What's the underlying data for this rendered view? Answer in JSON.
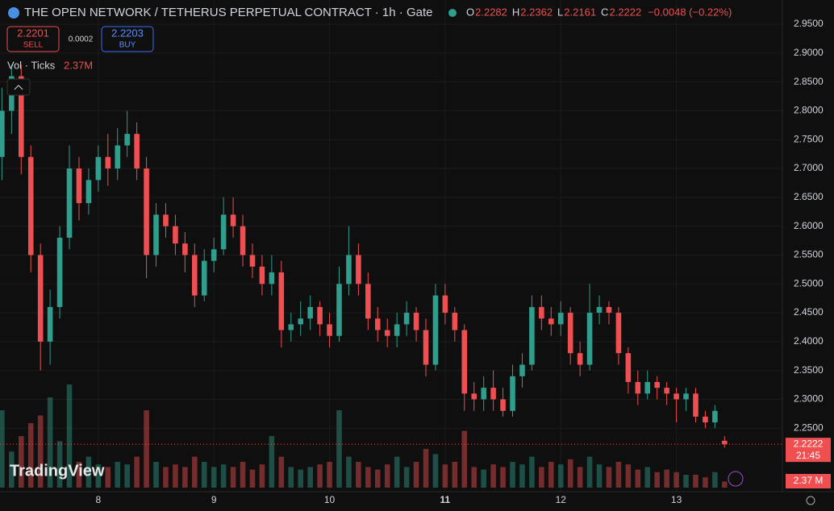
{
  "chart_data": {
    "type": "candlestick",
    "title": "THE OPEN NETWORK / TETHERUS PERPETUAL CONTRACT · 1h · Gate",
    "ohlc_letters": [
      "O",
      "H",
      "L",
      "C"
    ],
    "change_label": "−0.0048 (−0.22%)",
    "sell_price": "2.2201",
    "sell_label": "SELL",
    "spread": "0.0002",
    "buy_price": "2.2203",
    "buy_label": "BUY",
    "volume_title": "Vol · Ticks",
    "volume_legend_value": "2.37M",
    "volume_axis_label": "2.37 M",
    "countdown": "21:45",
    "watermark": "TradingView",
    "up_color": "#2f9e8c",
    "down_color": "#ef4f50",
    "open": [
      2.72,
      2.8,
      2.86,
      2.72,
      2.55,
      2.4,
      2.46,
      2.58,
      2.7,
      2.64,
      2.68,
      2.72,
      2.7,
      2.74,
      2.76,
      2.7,
      2.55,
      2.62,
      2.6,
      2.57,
      2.55,
      2.48,
      2.54,
      2.56,
      2.62,
      2.6,
      2.55,
      2.53,
      2.5,
      2.52,
      2.42,
      2.43,
      2.44,
      2.46,
      2.43,
      2.41,
      2.5,
      2.55,
      2.5,
      2.44,
      2.42,
      2.41,
      2.43,
      2.45,
      2.42,
      2.36,
      2.48,
      2.45,
      2.42,
      2.31,
      2.3,
      2.32,
      2.3,
      2.28,
      2.34,
      2.36,
      2.46,
      2.44,
      2.43,
      2.45,
      2.38,
      2.36,
      2.45,
      2.46,
      2.45,
      2.38,
      2.33,
      2.31,
      2.33,
      2.32,
      2.31,
      2.3,
      2.31,
      2.27,
      2.26,
      2.2282
    ],
    "high": [
      2.84,
      2.88,
      2.88,
      2.74,
      2.57,
      2.49,
      2.6,
      2.74,
      2.72,
      2.7,
      2.74,
      2.76,
      2.77,
      2.8,
      2.78,
      2.72,
      2.64,
      2.64,
      2.62,
      2.59,
      2.57,
      2.56,
      2.58,
      2.65,
      2.65,
      2.62,
      2.57,
      2.55,
      2.55,
      2.54,
      2.45,
      2.47,
      2.48,
      2.47,
      2.45,
      2.53,
      2.6,
      2.57,
      2.52,
      2.46,
      2.44,
      2.45,
      2.47,
      2.46,
      2.44,
      2.5,
      2.5,
      2.46,
      2.43,
      2.33,
      2.34,
      2.35,
      2.32,
      2.36,
      2.38,
      2.48,
      2.48,
      2.46,
      2.47,
      2.46,
      2.4,
      2.5,
      2.48,
      2.47,
      2.46,
      2.39,
      2.35,
      2.35,
      2.34,
      2.33,
      2.32,
      2.32,
      2.32,
      2.28,
      2.29,
      2.2362
    ],
    "low": [
      2.68,
      2.76,
      2.69,
      2.52,
      2.35,
      2.36,
      2.44,
      2.56,
      2.61,
      2.62,
      2.66,
      2.67,
      2.68,
      2.72,
      2.68,
      2.51,
      2.53,
      2.58,
      2.55,
      2.52,
      2.46,
      2.47,
      2.52,
      2.55,
      2.58,
      2.53,
      2.51,
      2.48,
      2.48,
      2.39,
      2.4,
      2.41,
      2.42,
      2.41,
      2.39,
      2.4,
      2.48,
      2.48,
      2.42,
      2.4,
      2.39,
      2.39,
      2.41,
      2.4,
      2.34,
      2.35,
      2.43,
      2.4,
      2.28,
      2.28,
      2.28,
      2.28,
      2.27,
      2.27,
      2.32,
      2.35,
      2.42,
      2.41,
      2.41,
      2.36,
      2.34,
      2.35,
      2.43,
      2.43,
      2.36,
      2.31,
      2.29,
      2.3,
      2.3,
      2.29,
      2.26,
      2.28,
      2.26,
      2.25,
      2.25,
      2.2161
    ],
    "close": [
      2.8,
      2.86,
      2.72,
      2.55,
      2.4,
      2.46,
      2.58,
      2.7,
      2.64,
      2.68,
      2.72,
      2.7,
      2.74,
      2.76,
      2.7,
      2.55,
      2.62,
      2.6,
      2.57,
      2.55,
      2.48,
      2.54,
      2.56,
      2.62,
      2.6,
      2.55,
      2.53,
      2.5,
      2.52,
      2.42,
      2.43,
      2.44,
      2.46,
      2.43,
      2.41,
      2.5,
      2.55,
      2.5,
      2.44,
      2.42,
      2.41,
      2.43,
      2.45,
      2.42,
      2.36,
      2.48,
      2.45,
      2.42,
      2.31,
      2.3,
      2.32,
      2.3,
      2.28,
      2.34,
      2.36,
      2.46,
      2.44,
      2.43,
      2.45,
      2.38,
      2.36,
      2.45,
      2.46,
      2.45,
      2.38,
      2.33,
      2.31,
      2.33,
      2.32,
      2.31,
      2.3,
      2.31,
      2.27,
      2.26,
      2.28,
      2.2222
    ],
    "volume": [
      30,
      14,
      20,
      25,
      28,
      35,
      18,
      40,
      10,
      12,
      9,
      8,
      10,
      9,
      12,
      30,
      10,
      8,
      9,
      8,
      12,
      10,
      8,
      9,
      8,
      10,
      7,
      9,
      20,
      12,
      8,
      7,
      8,
      9,
      10,
      30,
      12,
      10,
      8,
      7,
      9,
      12,
      8,
      10,
      15,
      13,
      9,
      10,
      22,
      8,
      7,
      9,
      8,
      10,
      9,
      12,
      8,
      10,
      9,
      11,
      8,
      12,
      9,
      8,
      10,
      9,
      7,
      8,
      6,
      7,
      6,
      5,
      5,
      4,
      6,
      2.37
    ],
    "xlim": [
      -0.2,
      81
    ],
    "ylim": [
      2.14,
      2.992
    ],
    "vlim": [
      0,
      50
    ],
    "xticks": [
      {
        "value": 10,
        "label": "8"
      },
      {
        "value": 22,
        "label": "9"
      },
      {
        "value": 34,
        "label": "10"
      },
      {
        "value": 46,
        "label": "11"
      },
      {
        "value": 58,
        "label": "12"
      },
      {
        "value": 70,
        "label": "13"
      }
    ],
    "yticks": [
      {
        "value": 2.25,
        "label": "2.2500"
      },
      {
        "value": 2.3,
        "label": "2.3000"
      },
      {
        "value": 2.35,
        "label": "2.3500"
      },
      {
        "value": 2.4,
        "label": "2.4000"
      },
      {
        "value": 2.45,
        "label": "2.4500"
      },
      {
        "value": 2.5,
        "label": "2.5000"
      },
      {
        "value": 2.55,
        "label": "2.5500"
      },
      {
        "value": 2.6,
        "label": "2.6000"
      },
      {
        "value": 2.65,
        "label": "2.6500"
      },
      {
        "value": 2.7,
        "label": "2.7000"
      },
      {
        "value": 2.75,
        "label": "2.7500"
      },
      {
        "value": 2.8,
        "label": "2.8000"
      },
      {
        "value": 2.85,
        "label": "2.8500"
      },
      {
        "value": 2.9,
        "label": "2.9000"
      },
      {
        "value": 2.95,
        "label": "2.9500"
      }
    ],
    "grid": true
  }
}
